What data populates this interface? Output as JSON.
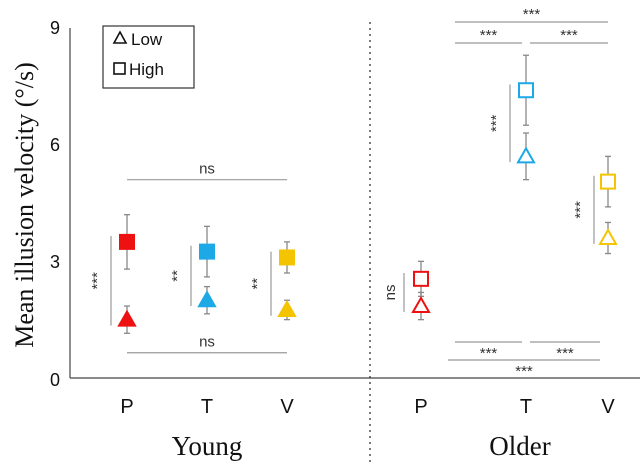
{
  "chart_data": {
    "type": "scatter",
    "ylabel": "Mean illusion velocity (°/s)",
    "ylim": [
      0,
      9
    ],
    "yticks": [
      "0",
      "3",
      "6",
      "9"
    ],
    "grid": false,
    "legend": {
      "position": "top-left",
      "entries": [
        {
          "marker": "triangle",
          "label": "Low"
        },
        {
          "marker": "square",
          "label": "High"
        }
      ]
    },
    "groups": [
      {
        "name": "Young",
        "filled": true,
        "conditions": [
          {
            "label": "P",
            "color": "#ee1111",
            "low": {
              "mean": 1.5,
              "err": 0.35
            },
            "high": {
              "mean": 3.5,
              "err": 0.7
            }
          },
          {
            "label": "T",
            "color": "#1ca9e6",
            "low": {
              "mean": 2.0,
              "err": 0.35
            },
            "high": {
              "mean": 3.25,
              "err": 0.65
            }
          },
          {
            "label": "V",
            "color": "#f5c400",
            "low": {
              "mean": 1.75,
              "err": 0.25
            },
            "high": {
              "mean": 3.1,
              "err": 0.4
            }
          }
        ]
      },
      {
        "name": "Older",
        "filled": false,
        "conditions": [
          {
            "label": "P",
            "color": "#ee1111",
            "low": {
              "mean": 1.85,
              "err": 0.35
            },
            "high": {
              "mean": 2.55,
              "err": 0.45
            }
          },
          {
            "label": "T",
            "color": "#1ca9e6",
            "low": {
              "mean": 5.7,
              "err": 0.6
            },
            "high": {
              "mean": 7.4,
              "err": 0.9
            }
          },
          {
            "label": "V",
            "color": "#f5c400",
            "low": {
              "mean": 3.6,
              "err": 0.4
            },
            "high": {
              "mean": 5.05,
              "err": 0.65
            }
          }
        ]
      }
    ],
    "annotations": [
      {
        "text": "ns",
        "kind": "horizontal",
        "value": 5.1
      },
      {
        "text": "ns",
        "kind": "horizontal",
        "value": 0.65
      },
      {
        "text": "***",
        "kind": "vertical",
        "group": "Young",
        "condition": "P"
      },
      {
        "text": "**",
        "kind": "vertical",
        "group": "Young",
        "condition": "T"
      },
      {
        "text": "**",
        "kind": "vertical",
        "group": "Young",
        "condition": "V"
      },
      {
        "text": "ns",
        "kind": "vertical",
        "group": "Older",
        "condition": "P"
      },
      {
        "text": "***",
        "kind": "vertical",
        "group": "Older",
        "condition": "T"
      },
      {
        "text": "***",
        "kind": "vertical",
        "group": "Older",
        "condition": "V"
      },
      {
        "text": "***",
        "kind": "bracket-top",
        "from": "P",
        "to": "V"
      },
      {
        "text": "***",
        "kind": "bracket-top",
        "from": "P",
        "to": "T"
      },
      {
        "text": "***",
        "kind": "bracket-top",
        "from": "T",
        "to": "V"
      },
      {
        "text": "***",
        "kind": "bracket-bottom",
        "from": "P",
        "to": "T"
      },
      {
        "text": "***",
        "kind": "bracket-bottom",
        "from": "T",
        "to": "V"
      },
      {
        "text": "***",
        "kind": "bracket-bottom",
        "from": "P",
        "to": "V"
      }
    ]
  }
}
